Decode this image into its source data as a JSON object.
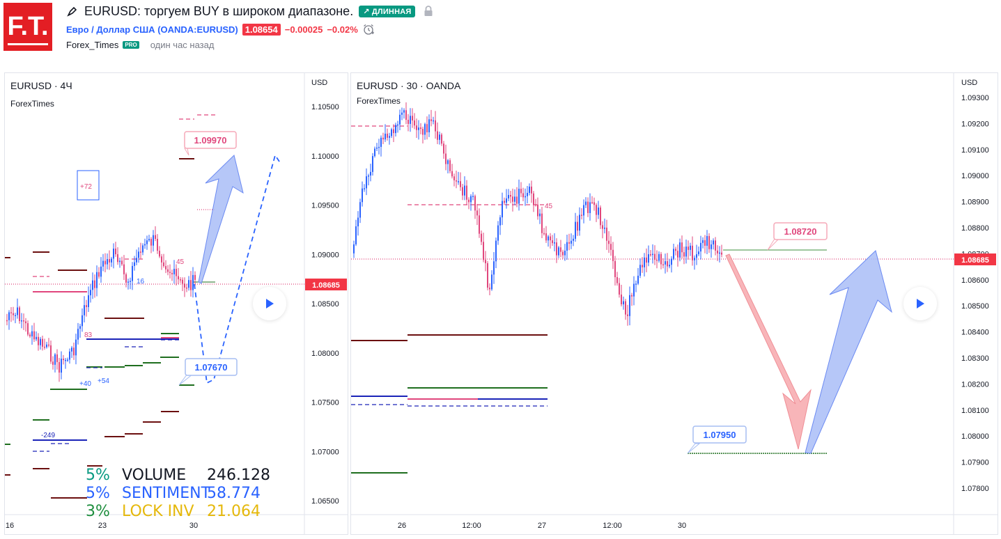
{
  "header": {
    "title": "EURUSD: торгуем BUY в широком диапазоне.",
    "direction_badge": "↗ ДЛИННАЯ",
    "symbol_name": "Евро / Доллар США",
    "symbol_code": "(OANDA:EURUSD)",
    "price": "1.08654",
    "change": "−0.00025",
    "change_pct": "−0.02%",
    "author": "Forex_Times",
    "author_badge": "PRO",
    "published": "один час назад"
  },
  "logo": {
    "text": "F.T.",
    "bg": "#e31e24"
  },
  "left_chart": {
    "title": "EURUSD · 4Ч",
    "source": "ForexTimes",
    "currency": "USD",
    "y_ticks": [
      "1.10500",
      "1.10000",
      "1.09500",
      "1.09000",
      "1.08500",
      "1.08000",
      "1.07500",
      "1.07000",
      "1.06500"
    ],
    "x_ticks": [
      "16",
      "23",
      "30"
    ],
    "current_price": "1.08685",
    "target_high": "1.09970",
    "target_low": "1.07670",
    "box_label": "+72",
    "annotations": [
      "+40",
      "+54",
      "-249",
      "83",
      "16",
      "45"
    ],
    "stats": [
      {
        "pct": "5%",
        "label": "VOLUME",
        "value": "246.128",
        "color": "#089981"
      },
      {
        "pct": "5%",
        "label": "SENTIMENT",
        "value": "58.774",
        "color": "#2962ff"
      },
      {
        "pct": "3%",
        "label": "LOCK INV",
        "value": "21.064",
        "color": "#e5b80b"
      }
    ]
  },
  "right_chart": {
    "title": "EURUSD · 30 · OANDA",
    "source": "ForexTimes",
    "currency": "USD",
    "y_ticks": [
      "1.09300",
      "1.09200",
      "1.09100",
      "1.09000",
      "1.08900",
      "1.08800",
      "1.08700",
      "1.08600",
      "1.08500",
      "1.08400",
      "1.08300",
      "1.08200",
      "1.08100",
      "1.08000",
      "1.07900",
      "1.07800"
    ],
    "x_ticks": [
      "26",
      "12:00",
      "27",
      "12:00",
      "30"
    ],
    "current_price": "1.08685",
    "target_high": "1.08720",
    "target_low": "1.07950",
    "annotations": [
      "45"
    ]
  },
  "colors": {
    "bull": "#2962ff",
    "bear": "#e0467c",
    "down_arrow": "#f7a8ad",
    "up_arrow": "#a9bdf7",
    "level_dark": "#6b0f0f",
    "level_green": "#1e6e1e",
    "level_blue": "#1a23b8"
  }
}
